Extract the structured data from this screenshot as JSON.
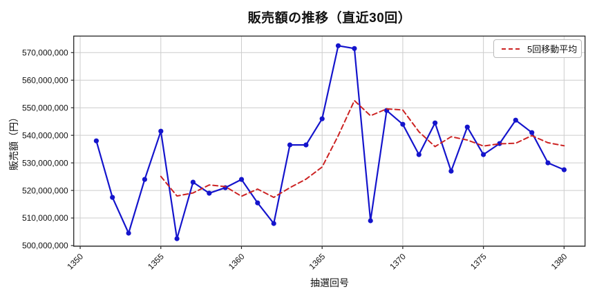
{
  "chart_data": {
    "type": "line",
    "title": "販売額の推移（直近30回）",
    "xlabel": "抽選回号",
    "ylabel": "販売額（円）",
    "grid": true,
    "legend": {
      "position": "upper right",
      "entries": [
        "5回移動平均"
      ]
    },
    "x": [
      1351,
      1352,
      1353,
      1354,
      1355,
      1356,
      1357,
      1358,
      1359,
      1360,
      1361,
      1362,
      1363,
      1364,
      1365,
      1366,
      1367,
      1368,
      1369,
      1370,
      1371,
      1372,
      1373,
      1374,
      1375,
      1376,
      1377,
      1378,
      1379,
      1380
    ],
    "series": [
      {
        "name": "販売額",
        "color": "#1414cc",
        "line_style": "solid",
        "marker": "circle",
        "values": [
          538000000,
          517500000,
          504500000,
          524000000,
          541500000,
          502500000,
          523000000,
          519000000,
          521000000,
          524000000,
          515500000,
          508000000,
          536500000,
          536500000,
          546000000,
          572500000,
          571500000,
          509000000,
          549000000,
          544000000,
          533000000,
          544500000,
          527000000,
          543000000,
          533000000,
          537000000,
          545500000,
          541000000,
          530000000,
          527500000
        ]
      },
      {
        "name": "5回移動平均",
        "color": "#cc2222",
        "line_style": "dashed",
        "marker": "none",
        "values": [
          null,
          null,
          null,
          null,
          525100000,
          518000000,
          519100000,
          522000000,
          521400000,
          517900000,
          520500000,
          517500000,
          521000000,
          524100000,
          528500000,
          539900000,
          552600000,
          547100000,
          549600000,
          549200000,
          541300000,
          535900000,
          539500000,
          538300000,
          536100000,
          536900000,
          537100000,
          539900000,
          537300000,
          536200000
        ]
      }
    ],
    "xticks": [
      1350,
      1355,
      1360,
      1365,
      1370,
      1375,
      1380
    ],
    "yticks": [
      500000000,
      510000000,
      520000000,
      530000000,
      540000000,
      550000000,
      560000000,
      570000000
    ],
    "xlim": [
      1349.6,
      1381.3
    ],
    "ylim": [
      499750000,
      576000000
    ],
    "grid_color": "#cccccc",
    "spine_color": "#262626"
  }
}
